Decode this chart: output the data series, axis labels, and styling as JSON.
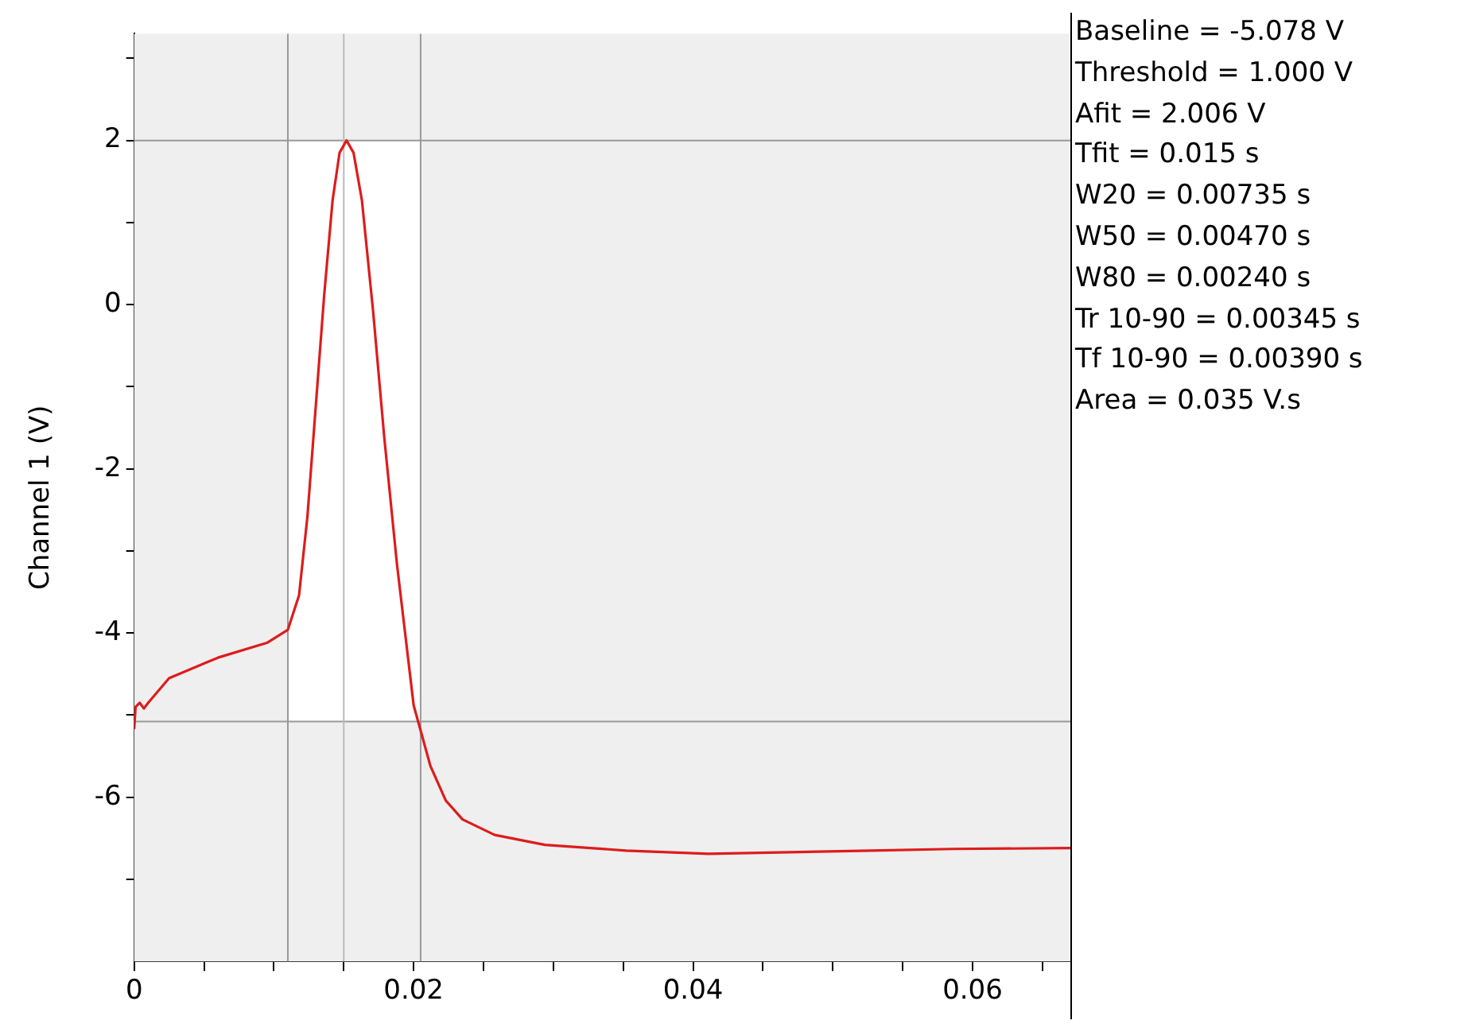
{
  "chart_data": {
    "type": "line",
    "ylabel": "Channel 1 (V)",
    "x": [
      0,
      0.0001,
      0.0004,
      0.0007,
      0.001,
      0.0025,
      0.006,
      0.0095,
      0.011,
      0.0118,
      0.0124,
      0.013,
      0.0136,
      0.0142,
      0.0147,
      0.0152,
      0.0157,
      0.0163,
      0.0171,
      0.0179,
      0.0188,
      0.02,
      0.0212,
      0.0223,
      0.0235,
      0.0258,
      0.0294,
      0.0352,
      0.0411,
      0.0469,
      0.0527,
      0.0586,
      0.067
    ],
    "series": [
      {
        "color": "#dd1c1c",
        "values": [
          -5.17,
          -4.9,
          -4.85,
          -4.92,
          -4.85,
          -4.55,
          -4.3,
          -4.12,
          -3.96,
          -3.54,
          -2.58,
          -1.23,
          0.12,
          1.27,
          1.85,
          2.0,
          1.85,
          1.27,
          -0.08,
          -1.62,
          -3.15,
          -4.88,
          -5.62,
          -6.04,
          -6.27,
          -6.46,
          -6.58,
          -6.65,
          -6.69,
          -6.67,
          -6.65,
          -6.63,
          -6.62
        ]
      }
    ],
    "xlim": [
      0,
      0.067
    ],
    "ylim": [
      -8,
      3.3
    ],
    "xticks": [
      0,
      {
        "value": 0.005,
        "label": null
      },
      {
        "value": 0.01,
        "label": null
      },
      {
        "value": 0.015,
        "label": null
      },
      0.02,
      {
        "value": 0.025,
        "label": null
      },
      {
        "value": 0.03,
        "label": null
      },
      {
        "value": 0.035,
        "label": null
      },
      0.04,
      {
        "value": 0.045,
        "label": null
      },
      {
        "value": 0.05,
        "label": null
      },
      {
        "value": 0.055,
        "label": null
      },
      0.06,
      {
        "value": 0.065,
        "label": null
      }
    ],
    "yticks": [
      {
        "value": -7,
        "label": null
      },
      -6,
      {
        "value": -5,
        "label": null
      },
      -4,
      {
        "value": -3,
        "label": null
      },
      -2,
      {
        "value": -1,
        "label": null
      },
      0,
      {
        "value": 1,
        "label": null
      },
      2,
      {
        "value": 3,
        "label": null
      }
    ],
    "grid": false,
    "legend": false,
    "marker": "none",
    "line_style": "solid",
    "bands": [
      {
        "axis": "x",
        "from": 0.011,
        "to": 0.0205,
        "color": "#ffffff"
      }
    ],
    "ref_lines": [
      {
        "axis": "y",
        "value": 2,
        "color": "#999999"
      },
      {
        "axis": "y",
        "value": -5.078,
        "color": "#999999"
      },
      {
        "axis": "x",
        "value": 0.011,
        "color": "#999999"
      },
      {
        "axis": "x",
        "value": 0.0205,
        "color": "#999999"
      },
      {
        "axis": "x",
        "value": 0.015,
        "color": "#bbbbbb"
      }
    ],
    "annotations": [
      "Baseline = -5.078 V",
      "Threshold = 1.000 V",
      "Afit = 2.006 V",
      "Tfit = 0.015 s",
      "W20 = 0.00735 s",
      "W50 = 0.00470 s",
      "W80 = 0.00240 s",
      "Tr 10-90 = 0.00345 s",
      "Tf 10-90 = 0.00390 s",
      "Area = 0.035 V.s"
    ]
  }
}
